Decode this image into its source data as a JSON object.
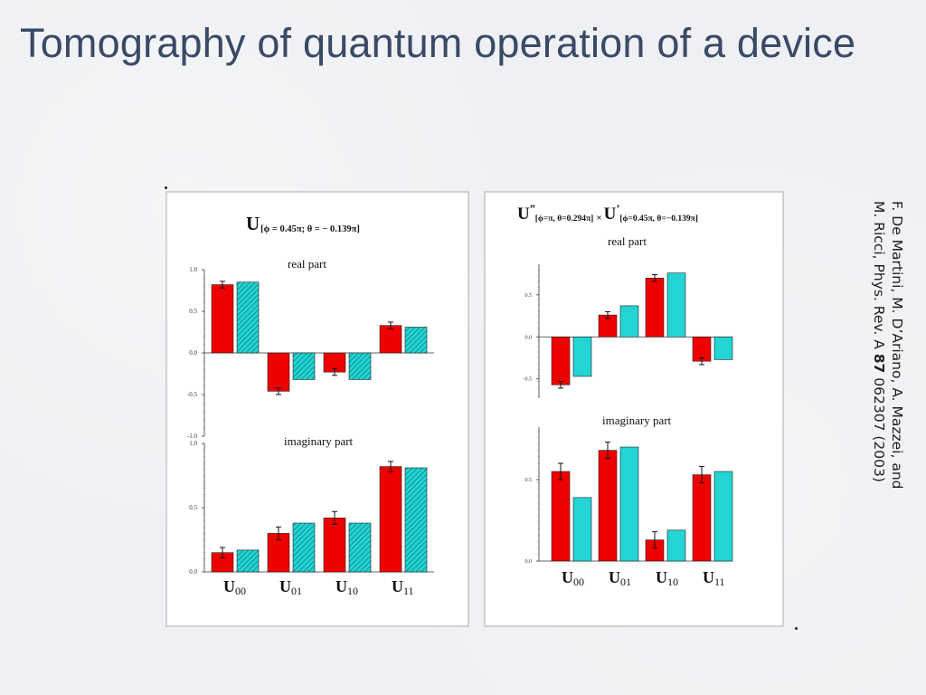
{
  "slide": {
    "title": "Tomography of quantum operation of a device",
    "citation_line1": "F. De Martini, M. D’Ariano, A. Mazzei, and",
    "citation_line2_pre": "M. Ricci, Phys. Rev. A ",
    "citation_volume": "87",
    "citation_line2_post": " 062307 (2003)"
  },
  "colors": {
    "measured": "#ee0000",
    "theory": "#22d4d4",
    "panel_bg": "#ffffff",
    "axis": "#333333"
  },
  "panels": {
    "left": {
      "header_main": "U",
      "header_sub": "[ϕ = 0.45π; θ = − 0.139π]"
    },
    "right": {
      "header_1": "U",
      "header_1_sup": "”",
      "header_1_sub": "[ϕ=π, θ=0.294π]",
      "times": "×",
      "header_2": "U",
      "header_2_sup": "’",
      "header_2_sub": "[ϕ=0.45π, θ=−0.139π]"
    }
  },
  "chart_data": [
    {
      "type": "bar",
      "title": "real part",
      "categories": [
        "U00",
        "U01",
        "U10",
        "U11"
      ],
      "ylim": [
        -1.0,
        1.0
      ],
      "yticks": [
        "1.0",
        "0.5",
        "0.0",
        "-0.5",
        "-1.0"
      ],
      "series": [
        {
          "values": [
            0.82,
            -0.46,
            -0.23,
            0.33
          ],
          "errors": [
            0.04,
            0.04,
            0.04,
            0.04
          ]
        },
        {
          "values": [
            0.85,
            -0.32,
            -0.32,
            0.31
          ]
        }
      ]
    },
    {
      "type": "bar",
      "title": "imaginary part",
      "categories": [
        "U00",
        "U01",
        "U10",
        "U11"
      ],
      "ylim": [
        0.0,
        1.0
      ],
      "yticks": [
        "1.0",
        "0.5",
        "0.0"
      ],
      "series": [
        {
          "values": [
            0.15,
            0.3,
            0.42,
            0.82
          ],
          "errors": [
            0.04,
            0.05,
            0.05,
            0.04
          ]
        },
        {
          "values": [
            0.17,
            0.38,
            0.38,
            0.81
          ]
        }
      ]
    },
    {
      "type": "bar",
      "title": "real part",
      "categories": [
        "U00",
        "U01",
        "U10",
        "U11"
      ],
      "ylim": [
        -0.6,
        0.8
      ],
      "yticks": [
        "0.5",
        "0.0",
        "-0.5"
      ],
      "series": [
        {
          "values": [
            -0.57,
            0.26,
            0.7,
            -0.29
          ],
          "errors": [
            0.04,
            0.04,
            0.04,
            0.04
          ]
        },
        {
          "values": [
            -0.47,
            0.37,
            0.76,
            -0.27
          ]
        }
      ]
    },
    {
      "type": "bar",
      "title": "imaginary part",
      "categories": [
        "U00",
        "U01",
        "U10",
        "U11"
      ],
      "ylim": [
        0.0,
        0.8
      ],
      "yticks": [
        "0.5",
        "0.0"
      ],
      "series": [
        {
          "values": [
            0.55,
            0.68,
            0.13,
            0.53
          ],
          "errors": [
            0.05,
            0.05,
            0.05,
            0.05
          ]
        },
        {
          "values": [
            0.39,
            0.7,
            0.19,
            0.55
          ]
        }
      ]
    }
  ]
}
